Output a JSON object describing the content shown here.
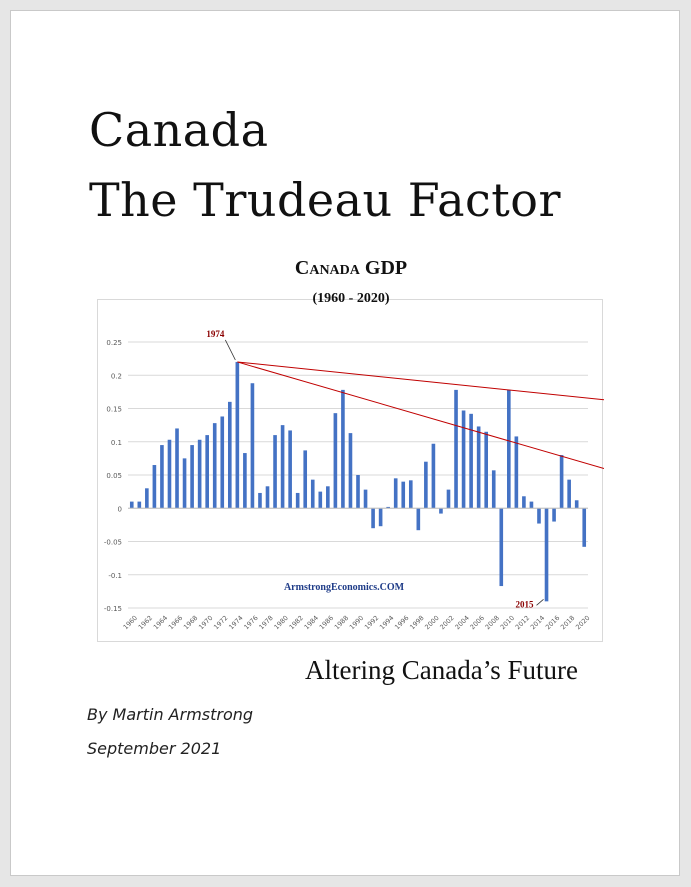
{
  "document": {
    "title_line1": "Canada",
    "title_line2": "The Trudeau Factor",
    "tagline": "Altering Canada’s Future",
    "author": "By Martin Armstrong",
    "date": "September 2021"
  },
  "chart_data": {
    "type": "bar",
    "title": "Canada GDP",
    "subtitle": "(1960 - 2020)",
    "xlabel": "",
    "ylabel": "",
    "ylim": [
      -0.15,
      0.25
    ],
    "yticks": [
      -0.15,
      -0.1,
      -0.05,
      0,
      0.05,
      0.1,
      0.15,
      0.2,
      0.25
    ],
    "ytick_labels": [
      "-0.15",
      "-0.1",
      "-0.05",
      "0",
      "0.05",
      "0.1",
      "0.15",
      "0.2",
      "0.25"
    ],
    "grid": true,
    "categories": [
      1960,
      1961,
      1962,
      1963,
      1964,
      1965,
      1966,
      1967,
      1968,
      1969,
      1970,
      1971,
      1972,
      1973,
      1974,
      1975,
      1976,
      1977,
      1978,
      1979,
      1980,
      1981,
      1982,
      1983,
      1984,
      1985,
      1986,
      1987,
      1988,
      1989,
      1990,
      1991,
      1992,
      1993,
      1994,
      1995,
      1996,
      1997,
      1998,
      1999,
      2000,
      2001,
      2002,
      2003,
      2004,
      2005,
      2006,
      2007,
      2008,
      2009,
      2010,
      2011,
      2012,
      2013,
      2014,
      2015,
      2016,
      2017,
      2018,
      2019,
      2020
    ],
    "xtick_labels": [
      "1960",
      "1962",
      "1964",
      "1966",
      "1968",
      "1970",
      "1972",
      "1974",
      "1976",
      "1978",
      "1980",
      "1982",
      "1984",
      "1986",
      "1988",
      "1990",
      "1992",
      "1994",
      "1996",
      "1998",
      "2000",
      "2002",
      "2004",
      "2006",
      "2008",
      "2010",
      "2012",
      "2014",
      "2016",
      "2018",
      "2020"
    ],
    "values": [
      0.01,
      0.01,
      0.03,
      0.065,
      0.095,
      0.103,
      0.12,
      0.075,
      0.095,
      0.103,
      0.11,
      0.128,
      0.138,
      0.16,
      0.22,
      0.083,
      0.188,
      0.023,
      0.033,
      0.11,
      0.125,
      0.117,
      0.023,
      0.087,
      0.043,
      0.025,
      0.033,
      0.143,
      0.178,
      0.113,
      0.05,
      0.028,
      -0.03,
      -0.027,
      0.002,
      0.045,
      0.04,
      0.042,
      -0.033,
      0.07,
      0.097,
      -0.008,
      0.028,
      0.178,
      0.147,
      0.142,
      0.123,
      0.115,
      0.057,
      -0.117,
      0.178,
      0.108,
      0.018,
      0.01,
      -0.023,
      -0.14,
      -0.02,
      0.08,
      0.043,
      0.012,
      -0.058
    ],
    "bar_color": "#4472c4",
    "trend_line_color": "#c00000",
    "trend_lines": [
      {
        "from": [
          1974,
          0.22
        ],
        "to": [
          2021,
          0.165
        ]
      },
      {
        "from": [
          1974,
          0.22
        ],
        "to": [
          2021,
          0.065
        ]
      }
    ],
    "annotations": [
      {
        "text": "1974",
        "x": 1974,
        "y": 0.22,
        "color": "#8b0000"
      },
      {
        "text": "2015",
        "x": 2015,
        "y": -0.14,
        "color": "#8b0000"
      },
      {
        "text": "ArmstrongEconomics.COM",
        "color": "#1f3c88"
      }
    ]
  }
}
